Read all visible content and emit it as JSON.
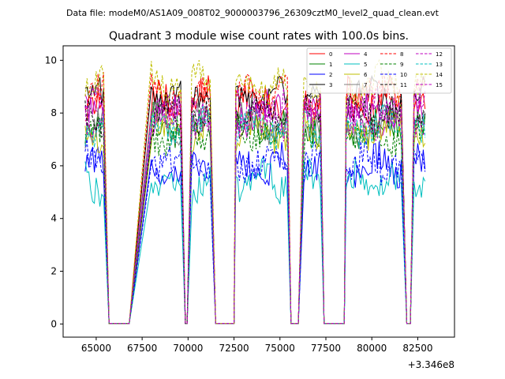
{
  "chart_data": {
    "type": "line",
    "suptitle": "Data file: modeM0/AS1A09_008T02_9000003796_26309cztM0_level2_quad_clean.evt",
    "title": "Quadrant 3 module wise count rates with 100.0s bins.",
    "xlabel": "",
    "ylabel": "",
    "x_offset_label": "+3.346e8",
    "xlim": [
      63200,
      84500
    ],
    "ylim": [
      -0.5,
      10.55
    ],
    "x_ticks": [
      65000,
      67500,
      70000,
      72500,
      75000,
      77500,
      80000,
      82500
    ],
    "x_tick_labels": [
      "65000",
      "67500",
      "70000",
      "72500",
      "75000",
      "77500",
      "80000",
      "82500"
    ],
    "y_ticks": [
      0,
      2,
      4,
      6,
      8,
      10
    ],
    "y_tick_labels": [
      "0",
      "2",
      "4",
      "6",
      "8",
      "10"
    ],
    "bin_seconds": 100,
    "segments": [
      [
        64400,
        65400
      ],
      [
        68000,
        69600
      ],
      [
        70200,
        71200
      ],
      [
        72600,
        75400
      ],
      [
        76300,
        77200
      ],
      [
        78600,
        81600
      ],
      [
        82300,
        82900
      ]
    ],
    "gaps": [
      [
        65700,
        66800
      ],
      [
        69850,
        69950
      ],
      [
        71500,
        72500
      ],
      [
        75600,
        76000
      ],
      [
        77400,
        78500
      ],
      [
        81900,
        82100
      ]
    ],
    "series": [
      {
        "name": "0",
        "level": 8.5,
        "color": "#ff0000",
        "dash": "solid"
      },
      {
        "name": "1",
        "level": 7.5,
        "color": "#008000",
        "dash": "solid"
      },
      {
        "name": "2",
        "level": 6.0,
        "color": "#0000ff",
        "dash": "solid"
      },
      {
        "name": "3",
        "level": 8.6,
        "color": "#000000",
        "dash": "solid"
      },
      {
        "name": "4",
        "level": 8.0,
        "color": "#bf00bf",
        "dash": "solid"
      },
      {
        "name": "5",
        "level": 5.4,
        "color": "#00bfbf",
        "dash": "solid"
      },
      {
        "name": "6",
        "level": 7.3,
        "color": "#bfbf00",
        "dash": "solid"
      },
      {
        "name": "7",
        "level": 7.6,
        "color": "#808080",
        "dash": "solid"
      },
      {
        "name": "8",
        "level": 8.7,
        "color": "#ff0000",
        "dash": "dashed"
      },
      {
        "name": "9",
        "level": 7.2,
        "color": "#008000",
        "dash": "dashed"
      },
      {
        "name": "10",
        "level": 6.1,
        "color": "#0000ff",
        "dash": "dashed"
      },
      {
        "name": "11",
        "level": 7.9,
        "color": "#000000",
        "dash": "dashed"
      },
      {
        "name": "12",
        "level": 7.8,
        "color": "#bf00bf",
        "dash": "dashed"
      },
      {
        "name": "13",
        "level": 7.5,
        "color": "#00bfbf",
        "dash": "dashed"
      },
      {
        "name": "14",
        "level": 9.1,
        "color": "#bfbf00",
        "dash": "dashed"
      },
      {
        "name": "15",
        "level": 8.1,
        "color": "#bf00bf",
        "dash": "dashed"
      }
    ],
    "legend_location": "top-right",
    "legend_columns": 4
  }
}
